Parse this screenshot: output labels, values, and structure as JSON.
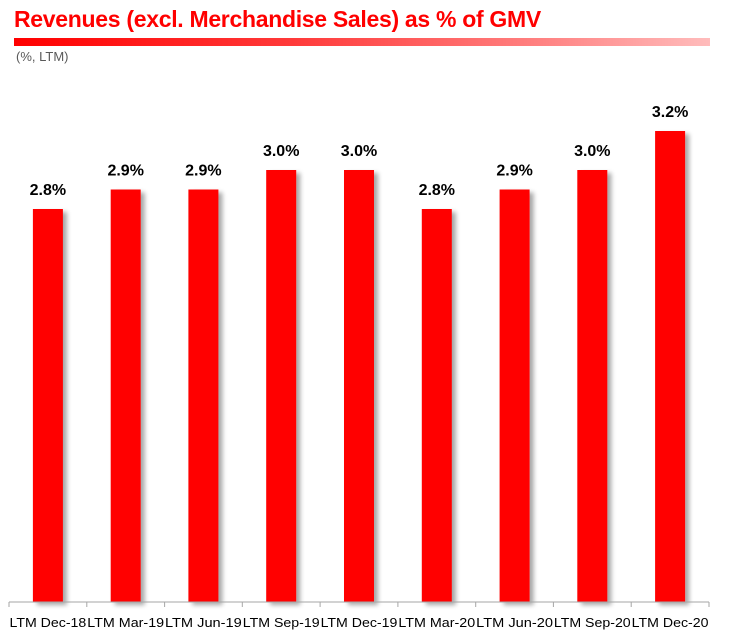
{
  "header": {
    "title": "Revenues (excl. Merchandise Sales) as % of GMV",
    "subtitle": "(%, LTM)"
  },
  "colors": {
    "bar": "#ff0000",
    "title": "#ff0000",
    "axis": "#a6a6a6"
  },
  "chart_data": {
    "type": "bar",
    "title": "Revenues (excl. Merchandise Sales) as % of GMV",
    "subtitle": "(%, LTM)",
    "xlabel": "",
    "ylabel": "",
    "categories": [
      "LTM Dec-18",
      "LTM Mar-19",
      "LTM Jun-19",
      "LTM Sep-19",
      "LTM Dec-19",
      "LTM Mar-20",
      "LTM Jun-20",
      "LTM Sep-20",
      "LTM Dec-20"
    ],
    "values": [
      2.8,
      2.9,
      2.9,
      3.0,
      3.0,
      2.8,
      2.9,
      3.0,
      3.2
    ],
    "value_labels": [
      "2.8%",
      "2.9%",
      "2.9%",
      "3.0%",
      "3.0%",
      "2.8%",
      "2.9%",
      "3.0%",
      "3.2%"
    ],
    "unit": "%",
    "ylim": [
      0,
      3.4
    ],
    "grid": false,
    "legend": "none",
    "y_axis_visible": false
  }
}
